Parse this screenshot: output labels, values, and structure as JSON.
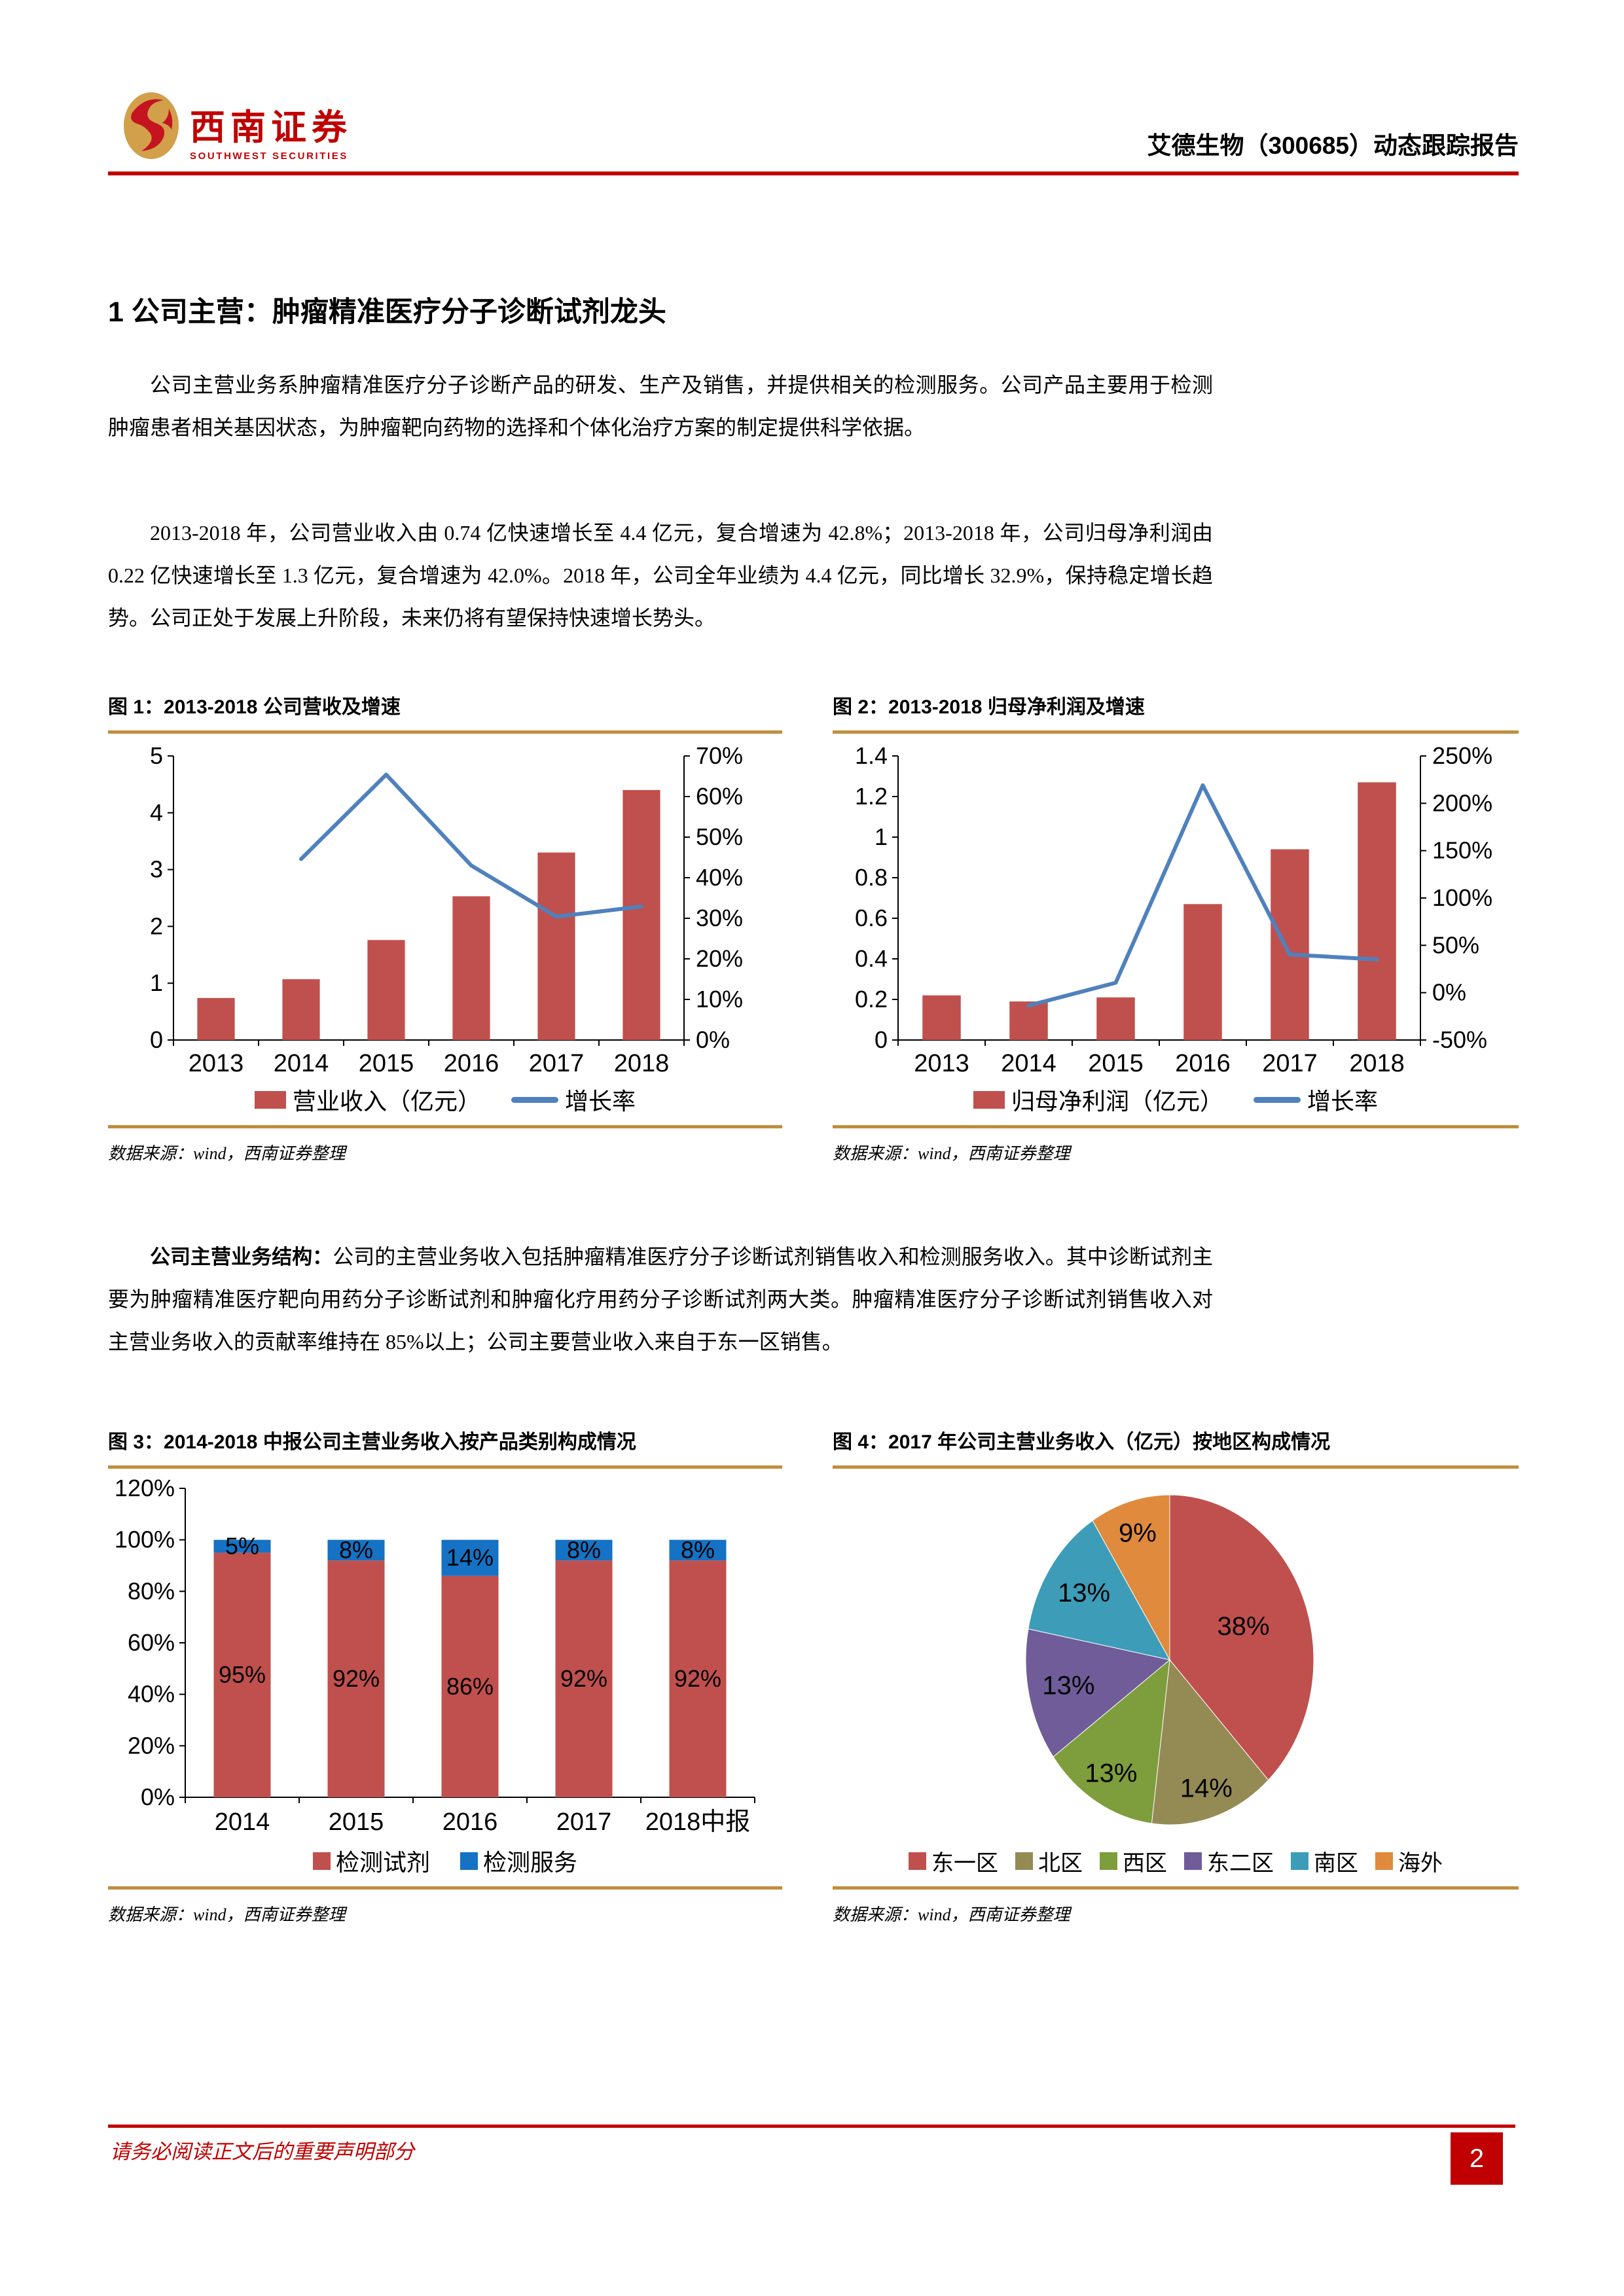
{
  "header": {
    "logo_cn": "西南证券",
    "logo_en": "SOUTHWEST SECURITIES",
    "report_title": "艾德生物（300685）动态跟踪报告"
  },
  "section": {
    "heading": "1 公司主营：肿瘤精准医疗分子诊断试剂龙头"
  },
  "paragraphs": {
    "p1": "公司主营业务系肿瘤精准医疗分子诊断产品的研发、生产及销售，并提供相关的检测服务。公司产品主要用于检测肿瘤患者相关基因状态，为肿瘤靶向药物的选择和个体化治疗方案的制定提供科学依据。",
    "p2": "2013-2018 年，公司营业收入由 0.74 亿快速增长至 4.4 亿元，复合增速为 42.8%；2013-2018 年，公司归母净利润由 0.22 亿快速增长至 1.3 亿元，复合增速为 42.0%。2018 年，公司全年业绩为 4.4 亿元，同比增长 32.9%，保持稳定增长趋势。公司正处于发展上升阶段，未来仍将有望保持快速增长势头。",
    "p3_bold": "公司主营业务结构：",
    "p3_rest": "公司的主营业务收入包括肿瘤精准医疗分子诊断试剂销售收入和检测服务收入。其中诊断试剂主要为肿瘤精准医疗靶向用药分子诊断试剂和肿瘤化疗用药分子诊断试剂两大类。肿瘤精准医疗分子诊断试剂销售收入对主营业务收入的贡献率维持在 85%以上；公司主要营业收入来自于东一区销售。"
  },
  "figures": {
    "fig1": {
      "title": "图 1：2013-2018 公司营收及增速",
      "source": "数据来源：wind，西南证券整理"
    },
    "fig2": {
      "title": "图 2：2013-2018 归母净利润及增速",
      "source": "数据来源：wind，西南证券整理"
    },
    "fig3": {
      "title": "图 3：2014-2018 中报公司主营业务收入按产品类别构成情况",
      "source": "数据来源：wind，西南证券整理"
    },
    "fig4": {
      "title": "图 4：2017 年公司主营业务收入（亿元）按地区构成情况",
      "source": "数据来源：wind，西南证券整理"
    }
  },
  "chart_data": [
    {
      "type": "combo",
      "title": "图 1：2013-2018 公司营收及增速",
      "categories": [
        "2013",
        "2014",
        "2015",
        "2016",
        "2017",
        "2018"
      ],
      "series": [
        {
          "name": "营业收入（亿元）",
          "chart": "bar",
          "axis": "left",
          "values": [
            0.74,
            1.07,
            1.76,
            2.53,
            3.3,
            4.4
          ],
          "color": "#C0504D"
        },
        {
          "name": "增长率",
          "chart": "line",
          "axis": "right",
          "values": [
            null,
            44.6,
            65.4,
            43.0,
            30.4,
            32.9
          ],
          "color": "#4F81BD"
        }
      ],
      "left_axis": {
        "min": 0,
        "max": 5,
        "labels": [
          "0",
          "1",
          "2",
          "3",
          "4",
          "5"
        ]
      },
      "right_axis": {
        "min": 0,
        "max": 70,
        "labels": [
          "0%",
          "10%",
          "20%",
          "30%",
          "40%",
          "50%",
          "60%",
          "70%"
        ]
      },
      "legend": [
        {
          "label": "营业收入（亿元）",
          "color": "#C0504D",
          "marker": "rect"
        },
        {
          "label": "增长率",
          "color": "#4F81BD",
          "marker": "line"
        }
      ]
    },
    {
      "type": "combo",
      "title": "图 2：2013-2018 归母净利润及增速",
      "categories": [
        "2013",
        "2014",
        "2015",
        "2016",
        "2017",
        "2018"
      ],
      "series": [
        {
          "name": "归母净利润（亿元）",
          "chart": "bar",
          "axis": "left",
          "values": [
            0.22,
            0.19,
            0.21,
            0.67,
            0.94,
            1.27
          ],
          "color": "#C0504D"
        },
        {
          "name": "增长率",
          "chart": "line",
          "axis": "right",
          "values": [
            null,
            -13.6,
            10.5,
            219.0,
            40.3,
            35.1
          ],
          "color": "#4F81BD"
        }
      ],
      "left_axis": {
        "min": 0,
        "max": 1.4,
        "labels": [
          "0",
          "0.2",
          "0.4",
          "0.6",
          "0.8",
          "1",
          "1.2",
          "1.4"
        ]
      },
      "right_axis": {
        "min": -50,
        "max": 250,
        "labels": [
          "-50%",
          "0%",
          "50%",
          "100%",
          "150%",
          "200%",
          "250%"
        ]
      },
      "legend": [
        {
          "label": "归母净利润（亿元）",
          "color": "#C0504D",
          "marker": "rect"
        },
        {
          "label": "增长率",
          "color": "#4F81BD",
          "marker": "line"
        }
      ]
    },
    {
      "type": "stacked_bar",
      "title": "图 3：2014-2018 中报公司主营业务收入按产品类别构成情况",
      "categories": [
        "2014",
        "2015",
        "2016",
        "2017",
        "2018中报"
      ],
      "series": [
        {
          "name": "检测试剂",
          "values": [
            95,
            92,
            86,
            92,
            92
          ],
          "color": "#C0504D"
        },
        {
          "name": "检测服务",
          "values": [
            5,
            8,
            14,
            8,
            8
          ],
          "color": "#1572C4"
        }
      ],
      "y_axis": {
        "min": 0,
        "max": 120,
        "labels": [
          "0%",
          "20%",
          "40%",
          "60%",
          "80%",
          "100%",
          "120%"
        ]
      },
      "legend": [
        {
          "label": "检测试剂",
          "color": "#C0504D",
          "marker": "square"
        },
        {
          "label": "检测服务",
          "color": "#1572C4",
          "marker": "square"
        }
      ]
    },
    {
      "type": "pie",
      "title": "图 4：2017 年公司主营业务收入（亿元）按地区构成情况",
      "labels": [
        "东一区",
        "北区",
        "西区",
        "东二区",
        "南区",
        "海外"
      ],
      "values": [
        38,
        14,
        13,
        13,
        13,
        9
      ],
      "percent_labels": [
        "38%",
        "14%",
        "13%",
        "13%",
        "13%",
        "9%"
      ],
      "colors": [
        "#C0504D",
        "#948A54",
        "#7E9D3C",
        "#6F5C99",
        "#3D9CB8",
        "#DF8A3D"
      ],
      "label_r": [
        0.55,
        0.82,
        0.8,
        0.72,
        0.72,
        0.8
      ],
      "start_angle": 0,
      "legend": [
        {
          "label": "东一区",
          "color": "#C0504D",
          "marker": "square"
        },
        {
          "label": "北区",
          "color": "#948A54",
          "marker": "square"
        },
        {
          "label": "西区",
          "color": "#7E9D3C",
          "marker": "square"
        },
        {
          "label": "东二区",
          "color": "#6F5C99",
          "marker": "square"
        },
        {
          "label": "南区",
          "color": "#3D9CB8",
          "marker": "square"
        },
        {
          "label": "海外",
          "color": "#DF8A3D",
          "marker": "square"
        }
      ]
    }
  ],
  "footer": {
    "disclaimer": "请务必阅读正文后的重要声明部分",
    "page_number": "2"
  }
}
